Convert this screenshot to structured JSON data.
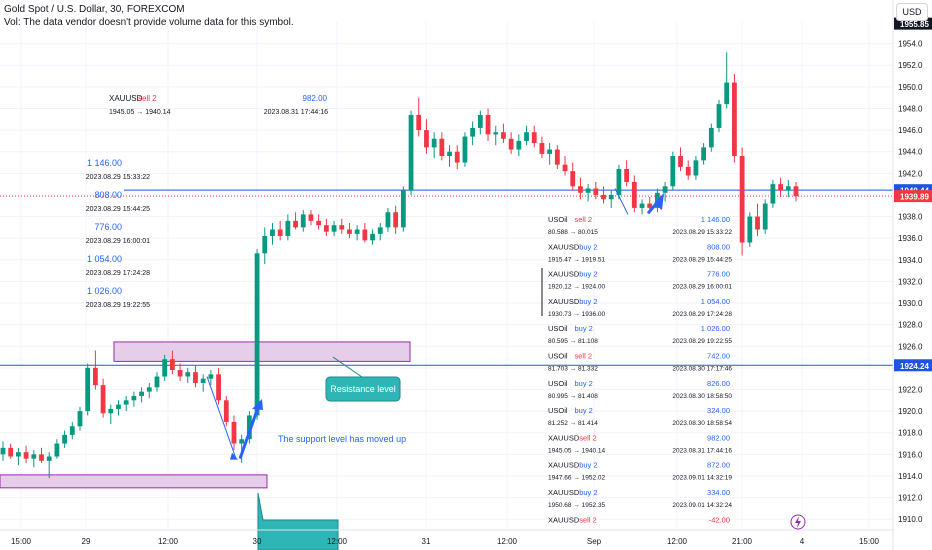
{
  "header": {
    "symbol_line": "Gold Spot / U.S. Dollar, 30, FOREXCOM",
    "vol_line": "Vol: The data vendor doesn't provide volume data for this symbol."
  },
  "currency_button": "USD",
  "chart_data": {
    "type": "candlestick",
    "ylim": [
      1909,
      1956
    ],
    "y_ticks": [
      1910,
      1912,
      1914,
      1916,
      1918,
      1920,
      1922,
      1924,
      1926,
      1928,
      1930,
      1932,
      1934,
      1936,
      1938,
      1940,
      1942,
      1944,
      1946,
      1948,
      1950,
      1952,
      1954
    ],
    "x_ticks": [
      "15:00",
      "29",
      "12:00",
      "30",
      "12:00",
      "31",
      "12:00",
      "Sep",
      "12:00",
      "21:00",
      "4",
      "15:00"
    ],
    "price_badges": [
      {
        "label": "1955.85",
        "value": 1955.85,
        "color": "#131722"
      },
      {
        "label": "1940.44",
        "value": 1940.44,
        "color": "#1e53e5"
      },
      {
        "label": "1939.89",
        "value": 1939.89,
        "color": "#f23645"
      },
      {
        "label": "1924.24",
        "value": 1924.24,
        "color": "#1e53e5"
      }
    ],
    "horizontal_lines": [
      {
        "value": 1940.44,
        "style": "solid",
        "color": "#1e53e5"
      },
      {
        "value": 1939.89,
        "style": "dotted",
        "color": "#f23645"
      },
      {
        "value": 1924.24,
        "style": "solid",
        "color": "#1e53e5"
      }
    ],
    "zones": [
      {
        "from": 1924.6,
        "to": 1926.4
      },
      {
        "from": 1912.9,
        "to": 1914.1
      }
    ],
    "callouts": [
      {
        "text": "Resistance level"
      },
      {
        "text": "The support level has moved up"
      }
    ],
    "candles": [
      [
        1916,
        1917.2,
        1915.4,
        1916.6
      ],
      [
        1916.6,
        1917,
        1915.6,
        1915.8
      ],
      [
        1915.8,
        1916.6,
        1915,
        1916.2
      ],
      [
        1916.2,
        1916.8,
        1915.2,
        1915.6
      ],
      [
        1915.6,
        1916.4,
        1914.8,
        1916
      ],
      [
        1916,
        1916.6,
        1915.2,
        1915.4
      ],
      [
        1915.4,
        1916.2,
        1913.8,
        1915.8
      ],
      [
        1915.8,
        1917.4,
        1915.6,
        1917
      ],
      [
        1917,
        1918.2,
        1916.6,
        1917.8
      ],
      [
        1917.8,
        1919,
        1917.4,
        1918.6
      ],
      [
        1918.6,
        1920.4,
        1918.2,
        1920
      ],
      [
        1920,
        1924.4,
        1919.6,
        1924
      ],
      [
        1924,
        1925.6,
        1922,
        1922.4
      ],
      [
        1922.4,
        1923,
        1919.4,
        1919.8
      ],
      [
        1919.8,
        1920.6,
        1918.8,
        1920.2
      ],
      [
        1920.2,
        1921,
        1919.6,
        1920.6
      ],
      [
        1920.6,
        1921.4,
        1920,
        1921
      ],
      [
        1921,
        1921.8,
        1920.4,
        1921.4
      ],
      [
        1921.4,
        1922.2,
        1920.8,
        1921.8
      ],
      [
        1921.8,
        1922.6,
        1921.2,
        1922.2
      ],
      [
        1922.2,
        1923.6,
        1921.8,
        1923.2
      ],
      [
        1923.2,
        1925.2,
        1922.8,
        1924.8
      ],
      [
        1924.8,
        1925.6,
        1923.4,
        1923.8
      ],
      [
        1923.8,
        1924.4,
        1922.8,
        1923.2
      ],
      [
        1923.2,
        1924,
        1922.6,
        1923.6
      ],
      [
        1923.6,
        1924.2,
        1922.2,
        1922.6
      ],
      [
        1922.6,
        1923.4,
        1921.8,
        1923
      ],
      [
        1923,
        1923.8,
        1922.4,
        1923.4
      ],
      [
        1923.4,
        1924,
        1920.6,
        1921
      ],
      [
        1921,
        1921.4,
        1918.6,
        1919
      ],
      [
        1919,
        1919.6,
        1916.4,
        1917
      ],
      [
        1917,
        1917.8,
        1915.2,
        1917.4
      ],
      [
        1917.4,
        1920,
        1917,
        1919.6
      ],
      [
        1919.6,
        1935,
        1919.2,
        1934.6
      ],
      [
        1934.6,
        1937,
        1933.6,
        1936.2
      ],
      [
        1936.2,
        1937.4,
        1935.4,
        1936.8
      ],
      [
        1936.8,
        1937.6,
        1935.8,
        1936.2
      ],
      [
        1936.2,
        1938.2,
        1935.8,
        1937.6
      ],
      [
        1937.6,
        1938.4,
        1936.8,
        1937
      ],
      [
        1937,
        1938.6,
        1936.6,
        1938.2
      ],
      [
        1938.2,
        1938.6,
        1937.2,
        1937.6
      ],
      [
        1937.6,
        1938.2,
        1936.8,
        1937.2
      ],
      [
        1937.2,
        1937.8,
        1936.2,
        1936.6
      ],
      [
        1936.6,
        1937.6,
        1936.2,
        1937.2
      ],
      [
        1937.2,
        1937.8,
        1936.4,
        1936.8
      ],
      [
        1936.8,
        1937.4,
        1936,
        1936.4
      ],
      [
        1936.4,
        1937.2,
        1935.8,
        1936.8
      ],
      [
        1936.8,
        1937.4,
        1935.6,
        1935.8
      ],
      [
        1935.8,
        1936.8,
        1935.4,
        1936.4
      ],
      [
        1936.4,
        1937.4,
        1935.8,
        1937
      ],
      [
        1937,
        1938.8,
        1936.6,
        1938.4
      ],
      [
        1938.4,
        1939,
        1936.4,
        1937
      ],
      [
        1937,
        1940.8,
        1936.6,
        1940.4
      ],
      [
        1940.4,
        1947.8,
        1940,
        1947.4
      ],
      [
        1947.4,
        1949,
        1945.4,
        1946
      ],
      [
        1946,
        1947,
        1943.8,
        1944.4
      ],
      [
        1944.4,
        1945.8,
        1943.4,
        1945.2
      ],
      [
        1945.2,
        1945.8,
        1943.2,
        1943.6
      ],
      [
        1943.6,
        1944.6,
        1942.6,
        1944
      ],
      [
        1944,
        1944.6,
        1942.4,
        1943
      ],
      [
        1943,
        1945.8,
        1942.6,
        1945.4
      ],
      [
        1945.4,
        1946.8,
        1944.6,
        1946.2
      ],
      [
        1946.2,
        1947.8,
        1945.6,
        1947.4
      ],
      [
        1947.4,
        1948,
        1945,
        1945.6
      ],
      [
        1945.6,
        1946.4,
        1944.6,
        1945.8
      ],
      [
        1945.8,
        1946.6,
        1944.8,
        1945.2
      ],
      [
        1945.2,
        1945.8,
        1943.8,
        1944.2
      ],
      [
        1944.2,
        1945.6,
        1943.6,
        1945
      ],
      [
        1945,
        1946.4,
        1944.6,
        1945.8
      ],
      [
        1945.8,
        1946.4,
        1944.4,
        1944.8
      ],
      [
        1944.8,
        1945.4,
        1943.4,
        1943.8
      ],
      [
        1943.8,
        1944.8,
        1942.8,
        1944.2
      ],
      [
        1944.2,
        1944.6,
        1942.4,
        1942.8
      ],
      [
        1942.8,
        1943.6,
        1941.8,
        1942.2
      ],
      [
        1942.2,
        1943,
        1940.4,
        1940.8
      ],
      [
        1940.8,
        1941.6,
        1939.6,
        1940.2
      ],
      [
        1940.2,
        1941,
        1939.4,
        1940.6
      ],
      [
        1940.6,
        1941.2,
        1939.6,
        1940
      ],
      [
        1940,
        1940.8,
        1939.2,
        1939.6
      ],
      [
        1939.6,
        1940.4,
        1938.8,
        1940
      ],
      [
        1940,
        1942.8,
        1939.6,
        1942.4
      ],
      [
        1942.4,
        1943.2,
        1940.8,
        1941.2
      ],
      [
        1941.2,
        1941.8,
        1938.4,
        1938.8
      ],
      [
        1938.8,
        1939.6,
        1938.2,
        1939.2
      ],
      [
        1939.2,
        1939.8,
        1938.4,
        1938.8
      ],
      [
        1938.8,
        1940.6,
        1938.4,
        1940.2
      ],
      [
        1940.2,
        1941.2,
        1939.4,
        1940.8
      ],
      [
        1940.8,
        1944,
        1940.4,
        1943.6
      ],
      [
        1943.6,
        1944.4,
        1942.2,
        1942.6
      ],
      [
        1942.6,
        1943.2,
        1941.4,
        1941.8
      ],
      [
        1941.8,
        1943.6,
        1941.4,
        1943.2
      ],
      [
        1943.2,
        1944.8,
        1942.8,
        1944.4
      ],
      [
        1944.4,
        1946.6,
        1944,
        1946.2
      ],
      [
        1946.2,
        1948.8,
        1945.8,
        1948.4
      ],
      [
        1948.4,
        1953.2,
        1948,
        1950.4
      ],
      [
        1950.4,
        1951.2,
        1943,
        1943.6
      ],
      [
        1943.6,
        1944.4,
        1934.4,
        1935.6
      ],
      [
        1935.6,
        1938.4,
        1935.2,
        1938
      ],
      [
        1938,
        1939.2,
        1936.2,
        1936.8
      ],
      [
        1936.8,
        1939.6,
        1936.4,
        1939.2
      ],
      [
        1939.2,
        1941.4,
        1938.8,
        1941
      ],
      [
        1941,
        1941.6,
        1939.8,
        1940.4
      ],
      [
        1940.4,
        1941.4,
        1939.8,
        1940.8
      ],
      [
        1940.8,
        1941.2,
        1939.4,
        1939.89
      ]
    ],
    "trade_entries": [
      {
        "symbol": "XAUUSD",
        "side": "sell 2",
        "prices": "1945.05 → 1940.14",
        "profit": "982.00",
        "time": "2023.08.31 17:44:16"
      },
      {
        "symbol": "USOil",
        "side": "sell 2",
        "prices": "80.588 → 80.015",
        "profit": "1 146.00",
        "time": "2023.08.29 15:33:22"
      },
      {
        "symbol": "XAUUSD",
        "side": "buy 2",
        "prices": "1915.47 → 1919.51",
        "profit": "808.00",
        "time": "2023.08.29 15:44:25"
      },
      {
        "symbol": "XAUUSD",
        "side": "buy 2",
        "prices": "1920.12 → 1924.00",
        "profit": "776.00",
        "time": "2023.08.29 16:00:01"
      },
      {
        "symbol": "XAUUSD",
        "side": "buy 2",
        "prices": "1930.73 → 1936.00",
        "profit": "1 054.00",
        "time": "2023.08.29 17:24:28"
      },
      {
        "symbol": "USOil",
        "side": "buy 2",
        "prices": "80.595 → 81.108",
        "profit": "1 026.00",
        "time": "2023.08.29 19:22:55"
      },
      {
        "symbol": "USOil",
        "side": "sell 2",
        "prices": "81.703 → 81.332",
        "profit": "742.00",
        "time": "2023.08.30 17:17:46"
      },
      {
        "symbol": "USOil",
        "side": "buy 2",
        "prices": "80.995 → 81.408",
        "profit": "826.00",
        "time": "2023.08.30 18:58:50"
      },
      {
        "symbol": "USOil",
        "side": "buy 2",
        "prices": "81.252 → 81.414",
        "profit": "324.00",
        "time": "2023.08.30 18:58:54"
      },
      {
        "symbol": "XAUUSD",
        "side": "sell 2",
        "prices": "1945.05 → 1940.14",
        "profit": "982.00",
        "time": "2023.08.31 17:44:16"
      },
      {
        "symbol": "XAUUSD",
        "side": "buy 2",
        "prices": "1947.66 → 1952.02",
        "profit": "872.00",
        "time": "2023.09.01 14:32:19"
      },
      {
        "symbol": "XAUUSD",
        "side": "buy 2",
        "prices": "1950.68 → 1952.35",
        "profit": "334.00",
        "time": "2023.09.01 14:32:24"
      },
      {
        "symbol": "XAUUSD",
        "side": "sell 2",
        "profit": "-42.00"
      }
    ],
    "left_summary": [
      {
        "profit": "1 146.00",
        "time": "2023.08.29 15:33:22"
      },
      {
        "profit": "808.00",
        "time": "2023.08.29 15:44:25"
      },
      {
        "profit": "776.00",
        "time": "2023.08.29 16:00:01"
      },
      {
        "profit": "1 054.00",
        "time": "2023.08.29 17:24:28"
      },
      {
        "profit": "1 026.00",
        "time": "2023.08.29 19:22:55"
      }
    ],
    "colors": {
      "up": "#089981",
      "down": "#f23645",
      "accent": "#2962ff",
      "zone_fill": "#e6cdea",
      "zone_border": "#9c27b0",
      "callout_fill": "#2fb5b5"
    }
  }
}
